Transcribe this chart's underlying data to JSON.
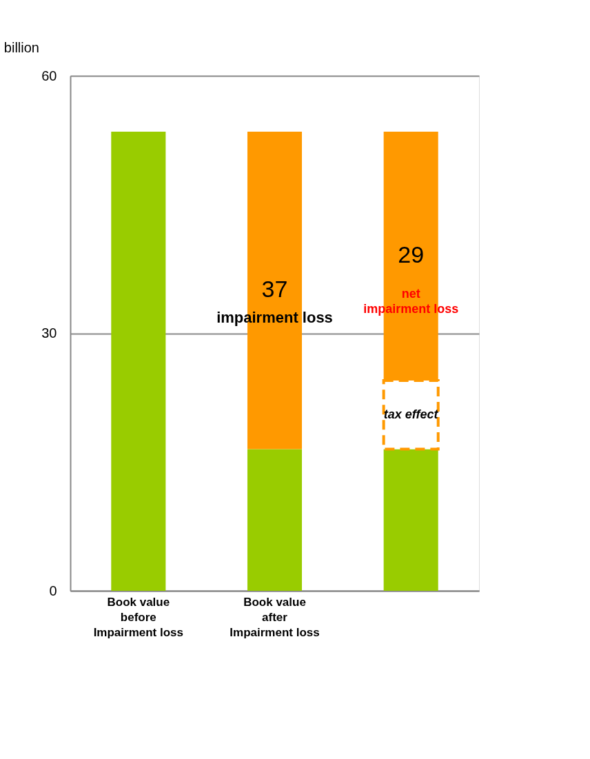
{
  "chart_data": {
    "type": "bar",
    "stacked": true,
    "ylabel": "billion",
    "categories": [
      "Book value before Impairment loss",
      "Book value after Impairment loss",
      null
    ],
    "series": [
      {
        "color": "#99cc00",
        "values": [
          53.5,
          16.5,
          16.5
        ]
      },
      {
        "color": "#ffffff",
        "values": [
          null,
          null,
          8
        ],
        "line_style": "dashed"
      },
      {
        "color": "#ff9900",
        "values": [
          null,
          37,
          29
        ],
        "value_labels": [
          null,
          "37",
          "29"
        ]
      }
    ],
    "ylim": [
      0,
      60
    ],
    "yticks": [
      0,
      30,
      60
    ],
    "grid": "y",
    "annotations": [
      "impairment loss",
      "net impairment loss",
      "tax effect"
    ]
  }
}
